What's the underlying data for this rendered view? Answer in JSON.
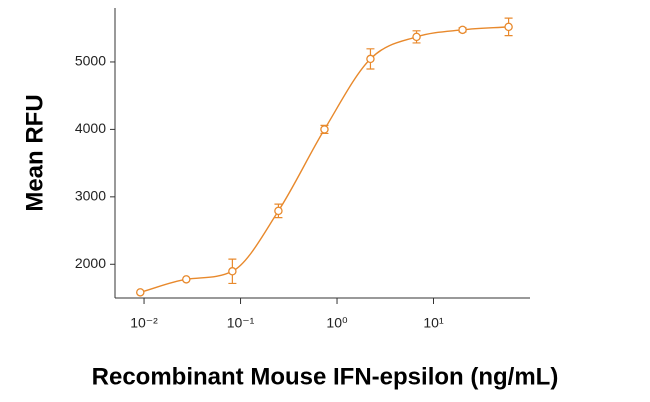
{
  "chart_data": {
    "type": "scatter",
    "x_label": "Recombinant Mouse IFN-epsilon (ng/mL)",
    "y_label": "Mean RFU",
    "x": [
      0.00914,
      0.0274,
      0.0823,
      0.247,
      0.741,
      2.22,
      6.67,
      20,
      60
    ],
    "series": [
      {
        "color": "#e8892c",
        "values": [
          1584,
          1777,
          1896,
          2792,
          4000,
          5045,
          5372,
          5476,
          5520
        ],
        "errors": [
          null,
          null,
          180,
          100,
          60,
          150,
          90,
          30,
          130
        ]
      }
    ],
    "x_log": true,
    "xlim": [
      0.005,
      100
    ],
    "ylim": [
      1500,
      5800
    ],
    "xticks": [
      {
        "value": 0.01,
        "label": "10⁻²"
      },
      {
        "value": 0.1,
        "label": "10⁻¹"
      },
      {
        "value": 1,
        "label": "10⁰"
      },
      {
        "value": 10,
        "label": "10¹"
      }
    ],
    "yticks": [
      2000,
      3000,
      4000,
      5000
    ]
  }
}
